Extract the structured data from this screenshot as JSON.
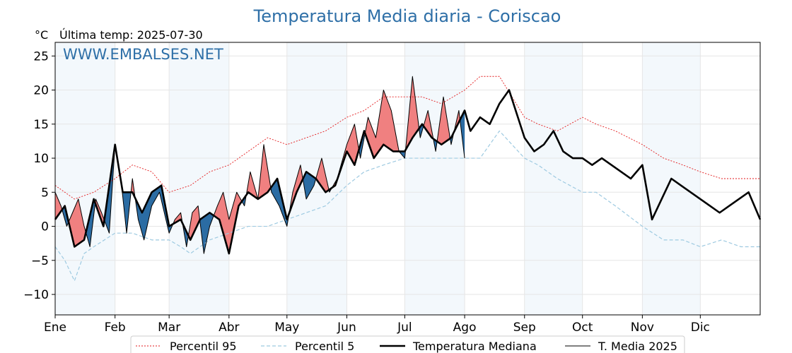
{
  "chart_data": {
    "type": "line",
    "title": "Temperatura Media diaria - Coriscao",
    "unit": "°C",
    "last_temp": "Última temp: 2025-07-30",
    "watermark": "WWW.EMBALSES.NET",
    "xlabel": "",
    "ylabel": "",
    "x_unit": "day of year",
    "xlim": [
      0,
      365
    ],
    "ylim": [
      -13,
      27
    ],
    "yticks": [
      -10,
      -5,
      0,
      5,
      10,
      15,
      20,
      25
    ],
    "ytick_labels": [
      "−10",
      "−5",
      "0",
      "5",
      "10",
      "15",
      "20",
      "25"
    ],
    "month_labels": [
      "Ene",
      "Feb",
      "Mar",
      "Abr",
      "May",
      "Jun",
      "Jul",
      "Ago",
      "Sep",
      "Oct",
      "Nov",
      "Dic"
    ],
    "month_starts": [
      0,
      31,
      59,
      90,
      120,
      151,
      181,
      212,
      243,
      273,
      304,
      334
    ],
    "grid": true,
    "legend_position": "bottom",
    "colors": {
      "p95": "#e31a1c",
      "p5": "#9ecae1",
      "median": "#000000",
      "media2025": "#000000",
      "above_fill": "#f08080",
      "above_fill_light": "#f4b6b6",
      "below_fill": "#2b6ca3",
      "below_fill_light": "#8fb5d3",
      "band": "#f3f8fc",
      "title": "#2e6fa7"
    },
    "series": [
      {
        "name": "Percentil 95",
        "style": "dotted",
        "x": [
          0,
          10,
          20,
          31,
          40,
          50,
          59,
          70,
          80,
          90,
          100,
          110,
          120,
          130,
          140,
          151,
          160,
          170,
          181,
          190,
          200,
          212,
          220,
          230,
          243,
          250,
          260,
          273,
          280,
          290,
          304,
          315,
          325,
          334,
          345,
          355,
          365
        ],
        "values": [
          6,
          4,
          5,
          7,
          9,
          8,
          5,
          6,
          8,
          9,
          11,
          13,
          12,
          13,
          14,
          16,
          17,
          19,
          19,
          19,
          18,
          20,
          22,
          22,
          16,
          15,
          14,
          16,
          15,
          14,
          12,
          10,
          9,
          8,
          7,
          7,
          7
        ]
      },
      {
        "name": "Percentil 5",
        "style": "dashed",
        "x": [
          0,
          5,
          10,
          15,
          20,
          31,
          40,
          50,
          59,
          65,
          70,
          75,
          80,
          90,
          100,
          110,
          120,
          130,
          140,
          151,
          160,
          170,
          181,
          190,
          200,
          212,
          220,
          230,
          243,
          250,
          260,
          273,
          280,
          290,
          304,
          315,
          325,
          334,
          345,
          355,
          365
        ],
        "values": [
          -3,
          -5,
          -8,
          -4,
          -3,
          -1,
          -1,
          -2,
          -2,
          -3,
          -4,
          -3,
          -2,
          -1,
          0,
          0,
          1,
          2,
          3,
          6,
          8,
          9,
          10,
          10,
          10,
          10,
          10,
          14,
          10,
          9,
          7,
          5,
          5,
          3,
          0,
          -2,
          -2,
          -3,
          -2,
          -3,
          -3
        ]
      },
      {
        "name": "Temperatura Mediana",
        "style": "solid-thick",
        "x": [
          0,
          5,
          10,
          15,
          20,
          25,
          31,
          35,
          40,
          45,
          50,
          55,
          59,
          65,
          70,
          75,
          80,
          85,
          90,
          95,
          100,
          105,
          110,
          115,
          120,
          125,
          130,
          135,
          140,
          145,
          151,
          155,
          160,
          165,
          170,
          175,
          181,
          185,
          190,
          195,
          200,
          205,
          212,
          215,
          220,
          225,
          230,
          235,
          243,
          248,
          253,
          258,
          263,
          268,
          273,
          278,
          283,
          288,
          293,
          298,
          304,
          309,
          314,
          319,
          324,
          329,
          334,
          339,
          344,
          349,
          354,
          359,
          365
        ],
        "values": [
          1,
          3,
          -3,
          -2,
          4,
          0,
          12,
          5,
          5,
          2,
          5,
          6,
          0,
          1,
          -2,
          1,
          2,
          1,
          -4,
          3,
          5,
          4,
          5,
          7,
          1,
          5,
          8,
          7,
          5,
          6,
          11,
          9,
          14,
          10,
          12,
          11,
          11,
          13,
          15,
          13,
          12,
          13,
          17,
          14,
          16,
          15,
          18,
          20,
          13,
          11,
          12,
          14,
          11,
          10,
          10,
          9,
          10,
          9,
          8,
          7,
          9,
          1,
          4,
          7,
          6,
          5,
          4,
          3,
          2,
          3,
          4,
          5,
          1
        ]
      },
      {
        "name": "T. Media 2025",
        "style": "solid-thin",
        "x": [
          0,
          3,
          6,
          9,
          12,
          15,
          18,
          21,
          24,
          28,
          31,
          34,
          37,
          40,
          43,
          46,
          50,
          54,
          59,
          62,
          65,
          68,
          71,
          74,
          77,
          80,
          84,
          87,
          90,
          94,
          98,
          101,
          105,
          108,
          112,
          116,
          120,
          123,
          127,
          130,
          134,
          138,
          142,
          146,
          151,
          155,
          158,
          162,
          166,
          170,
          174,
          178,
          181,
          185,
          189,
          193,
          197,
          201,
          205,
          209,
          212
        ],
        "values": [
          5,
          3,
          0,
          2,
          4,
          0,
          -3,
          4,
          2,
          -1,
          12,
          7,
          -1,
          7,
          1,
          -2,
          3,
          5,
          -1,
          1,
          2,
          -3,
          2,
          3,
          -4,
          0,
          3,
          5,
          1,
          5,
          3,
          8,
          4,
          12,
          5,
          3,
          0,
          5,
          9,
          4,
          6,
          10,
          5,
          7,
          12,
          15,
          10,
          16,
          13,
          20,
          17,
          11,
          10,
          22,
          13,
          17,
          11,
          19,
          12,
          17,
          10
        ]
      }
    ]
  }
}
